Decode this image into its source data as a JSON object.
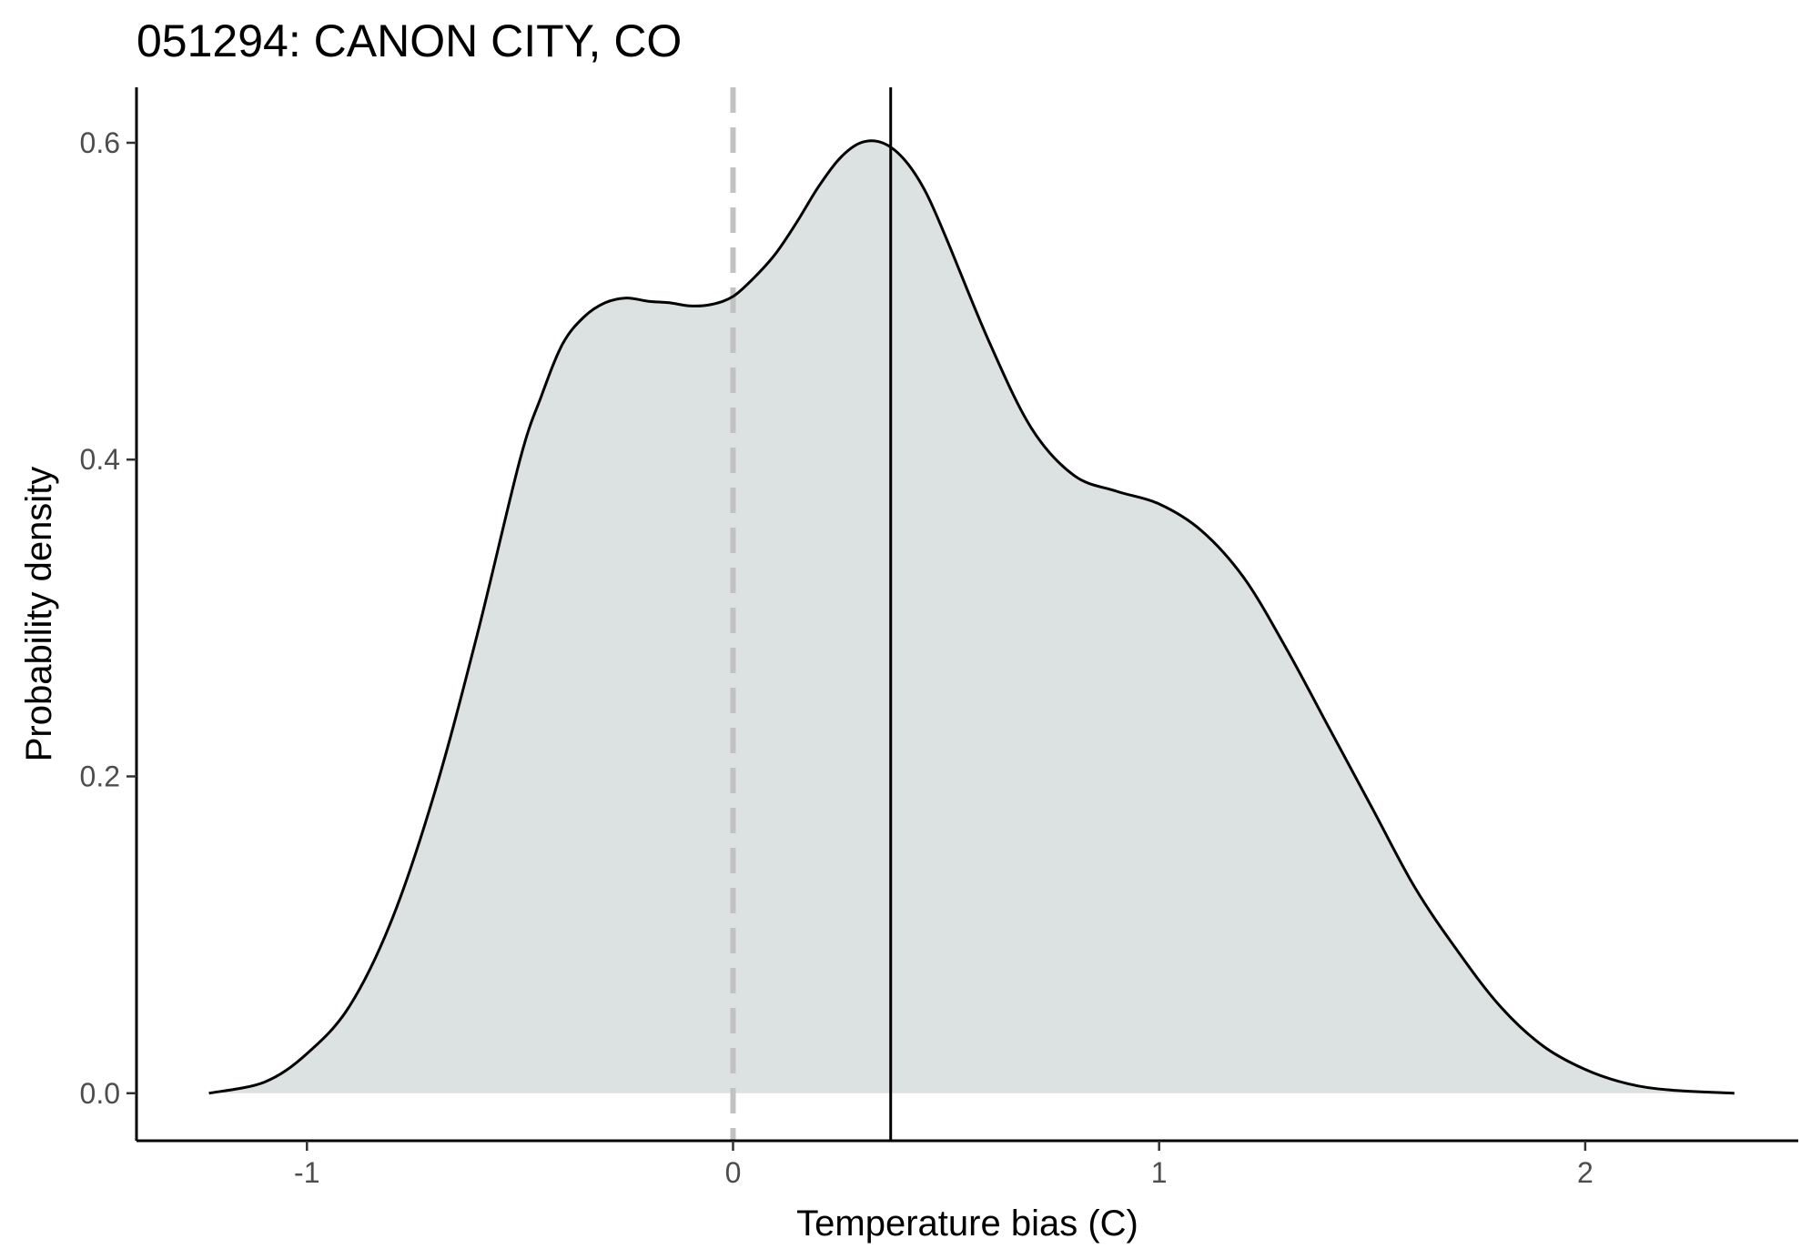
{
  "chart_data": {
    "type": "area",
    "title": "051294: CANON CITY, CO",
    "xlabel": "Temperature bias (C)",
    "ylabel": "Probability density",
    "xlim": [
      -1.4,
      2.5
    ],
    "ylim": [
      -0.03,
      0.635
    ],
    "xticks": [
      -1,
      0,
      1,
      2
    ],
    "xtick_labels": [
      "-1",
      "0",
      "1",
      "2"
    ],
    "yticks": [
      0.0,
      0.2,
      0.4,
      0.6
    ],
    "ytick_labels": [
      "0.0",
      "0.2",
      "0.4",
      "0.6"
    ],
    "grid": false,
    "legend": "none",
    "series": [
      {
        "x": [
          -1.23,
          -1.1,
          -1.0,
          -0.9,
          -0.8,
          -0.7,
          -0.6,
          -0.5,
          -0.45,
          -0.4,
          -0.35,
          -0.3,
          -0.25,
          -0.2,
          -0.15,
          -0.1,
          -0.05,
          0.0,
          0.05,
          0.1,
          0.15,
          0.2,
          0.25,
          0.3,
          0.35,
          0.4,
          0.45,
          0.5,
          0.6,
          0.7,
          0.8,
          0.9,
          1.0,
          1.1,
          1.2,
          1.3,
          1.4,
          1.5,
          1.6,
          1.7,
          1.8,
          1.9,
          2.0,
          2.1,
          2.2,
          2.35
        ],
        "y": [
          0.0,
          0.007,
          0.025,
          0.055,
          0.11,
          0.19,
          0.29,
          0.4,
          0.44,
          0.473,
          0.49,
          0.499,
          0.502,
          0.5,
          0.499,
          0.497,
          0.498,
          0.503,
          0.515,
          0.53,
          0.55,
          0.572,
          0.59,
          0.6,
          0.6,
          0.59,
          0.57,
          0.54,
          0.475,
          0.42,
          0.39,
          0.38,
          0.372,
          0.355,
          0.325,
          0.28,
          0.23,
          0.18,
          0.13,
          0.09,
          0.055,
          0.03,
          0.015,
          0.006,
          0.002,
          0.0
        ]
      }
    ],
    "reference_lines": [
      {
        "axis": "x",
        "value": 0.0,
        "style": "dashed",
        "color": "#c2c2c2"
      },
      {
        "axis": "x",
        "value": 0.37,
        "style": "solid",
        "color": "#000000"
      }
    ],
    "colors": {
      "fill": "#dce1e2",
      "curve": "#000000"
    }
  }
}
